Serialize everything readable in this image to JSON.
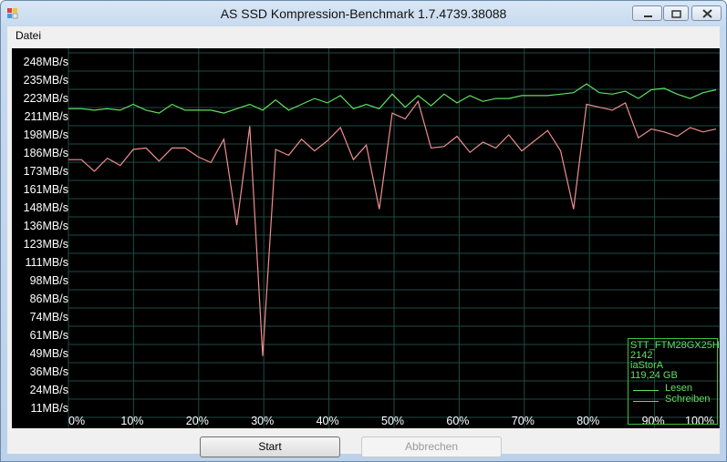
{
  "window": {
    "title": "AS SSD Kompression-Benchmark 1.7.4739.38088"
  },
  "menu": {
    "items": [
      "Datei"
    ]
  },
  "chart_data": {
    "type": "line",
    "ylabels": [
      "248MB/s",
      "235MB/s",
      "223MB/s",
      "211MB/s",
      "198MB/s",
      "186MB/s",
      "173MB/s",
      "161MB/s",
      "148MB/s",
      "136MB/s",
      "123MB/s",
      "111MB/s",
      "98MB/s",
      "86MB/s",
      "74MB/s",
      "61MB/s",
      "49MB/s",
      "36MB/s",
      "24MB/s",
      "11MB/s"
    ],
    "xlabels": [
      "0%",
      "10%",
      "20%",
      "30%",
      "40%",
      "50%",
      "60%",
      "70%",
      "80%",
      "90%",
      "100%"
    ],
    "xlim": [
      0,
      100
    ],
    "ylim": [
      0,
      250
    ],
    "grid": true,
    "legend_position": "bottom-right",
    "series": [
      {
        "name": "Lesen",
        "color": "#5fe05f",
        "x": [
          0,
          2,
          4,
          6,
          8,
          10,
          12,
          14,
          16,
          18,
          20,
          22,
          24,
          26,
          28,
          30,
          32,
          34,
          36,
          38,
          40,
          42,
          44,
          46,
          48,
          50,
          52,
          54,
          56,
          58,
          60,
          62,
          64,
          66,
          68,
          70,
          72,
          74,
          76,
          78,
          80,
          82,
          84,
          86,
          88,
          90,
          92,
          94,
          96,
          98,
          100
        ],
        "y": [
          215,
          215,
          214,
          215,
          214,
          218,
          214,
          212,
          218,
          214,
          214,
          214,
          212,
          215,
          218,
          214,
          221,
          214,
          218,
          222,
          219,
          224,
          215,
          218,
          215,
          225,
          216,
          224,
          217,
          225,
          219,
          224,
          220,
          222,
          222,
          224,
          224,
          224,
          225,
          226,
          232,
          226,
          225,
          227,
          222,
          228,
          229,
          225,
          222,
          226,
          228
        ]
      },
      {
        "name": "Schreiben",
        "color": "#f08e8e",
        "x": [
          0,
          2,
          4,
          6,
          8,
          10,
          12,
          14,
          16,
          18,
          20,
          22,
          24,
          26,
          28,
          30,
          32,
          34,
          36,
          38,
          40,
          42,
          44,
          46,
          48,
          50,
          52,
          54,
          56,
          58,
          60,
          62,
          64,
          66,
          68,
          70,
          72,
          74,
          76,
          78,
          80,
          82,
          84,
          86,
          88,
          90,
          92,
          94,
          96,
          98,
          100
        ],
        "y": [
          180,
          180,
          172,
          181,
          176,
          187,
          188,
          179,
          188,
          188,
          182,
          178,
          194,
          135,
          203,
          45,
          187,
          183,
          194,
          186,
          193,
          202,
          180,
          190,
          146,
          212,
          208,
          220,
          188,
          189,
          196,
          185,
          192,
          188,
          197,
          186,
          193,
          200,
          186,
          146,
          218,
          216,
          214,
          219,
          195,
          201,
          199,
          196,
          202,
          199,
          201
        ]
      }
    ]
  },
  "legend": {
    "drive_model": "STT_FTM28GX25H",
    "firmware": "2142",
    "driver": "iaStorA",
    "capacity": "119,24 GB",
    "items": [
      "Lesen",
      "Schreiben"
    ]
  },
  "buttons": {
    "start": "Start",
    "abbrechen": "Abbrechen"
  }
}
